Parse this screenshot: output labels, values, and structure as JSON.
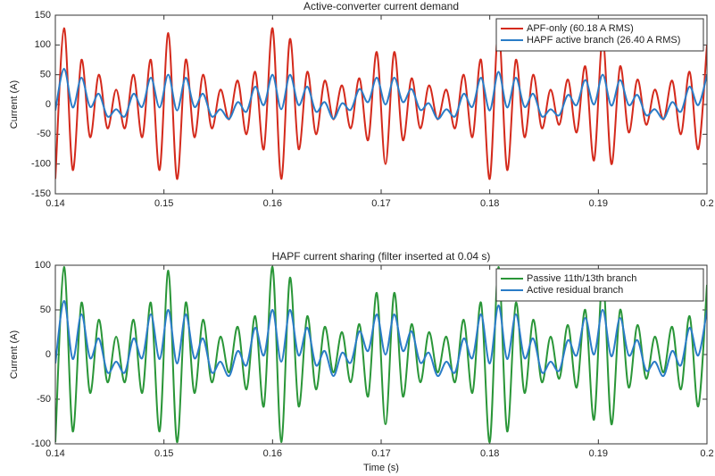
{
  "chart_data": [
    {
      "type": "line",
      "title": "Active-converter current demand",
      "ylabel": "Current (A)",
      "legend": "upper right",
      "grid": false,
      "xlim": [
        0.14,
        0.2
      ],
      "ylim": [
        -150,
        150
      ],
      "xticks": [
        0.14,
        0.15,
        0.16,
        0.17,
        0.18,
        0.19,
        0.2
      ],
      "yticks": [
        -150,
        -100,
        -50,
        0,
        50,
        100,
        150
      ],
      "x": [
        0.14,
        0.1408,
        0.1416,
        0.1424,
        0.1432,
        0.144,
        0.1448,
        0.1456,
        0.1464,
        0.1472,
        0.148,
        0.1488,
        0.1496,
        0.1504,
        0.1512,
        0.152,
        0.1528,
        0.1536,
        0.1544,
        0.1552,
        0.156,
        0.1568,
        0.1576,
        0.1584,
        0.1592,
        0.16,
        0.1608,
        0.1616,
        0.1624,
        0.1632,
        0.164,
        0.1648,
        0.1656,
        0.1664,
        0.1672,
        0.168,
        0.1688,
        0.1696,
        0.1704,
        0.1712,
        0.172,
        0.1728,
        0.1736,
        0.1744,
        0.1752,
        0.176,
        0.1768,
        0.1776,
        0.1784,
        0.1792,
        0.18,
        0.1808,
        0.1816,
        0.1824,
        0.1832,
        0.184,
        0.1848,
        0.1856,
        0.1864,
        0.1872,
        0.188,
        0.1888,
        0.1896,
        0.1904,
        0.1912,
        0.192,
        0.1928,
        0.1936,
        0.1944,
        0.1952,
        0.196,
        0.1968,
        0.1976,
        0.1984,
        0.1992,
        0.2
      ],
      "series": [
        {
          "name": "APF-only (60.18 A RMS)",
          "color": "#d42a1c",
          "values": [
            -125,
            128,
            -110,
            75,
            -55,
            50,
            -40,
            25,
            -40,
            50,
            -55,
            75,
            -110,
            120,
            -125,
            75,
            -55,
            50,
            -40,
            25,
            -25,
            40,
            -50,
            55,
            -75,
            128,
            -125,
            110,
            -75,
            55,
            -50,
            40,
            -25,
            32,
            -40,
            44,
            -60,
            88,
            -100,
            88,
            -60,
            44,
            -40,
            32,
            -25,
            25,
            -40,
            50,
            -55,
            75,
            -125,
            128,
            -110,
            75,
            -55,
            50,
            -40,
            25,
            -34,
            42,
            -47,
            64,
            -94,
            110,
            -100,
            64,
            -47,
            42,
            -34,
            25,
            -25,
            40,
            -50,
            55,
            -75,
            100
          ]
        },
        {
          "name": "HAPF active branch (26.40 A RMS)",
          "color": "#2a7cc7",
          "values": [
            -10,
            60,
            -5,
            45,
            -4,
            18,
            -20,
            -8,
            -20,
            18,
            -4,
            45,
            -5,
            50,
            -10,
            45,
            -4,
            18,
            -20,
            -8,
            -24,
            4,
            -12,
            30,
            -1,
            50,
            -8,
            50,
            -1,
            30,
            -12,
            4,
            -24,
            2,
            -9,
            26,
            4,
            45,
            0,
            45,
            4,
            26,
            -9,
            2,
            -24,
            -8,
            -20,
            18,
            -4,
            45,
            -10,
            55,
            -5,
            45,
            -4,
            18,
            -20,
            -8,
            -18,
            16,
            -1,
            41,
            0,
            50,
            -2,
            41,
            -1,
            16,
            -18,
            -8,
            -24,
            4,
            -12,
            30,
            -1,
            50
          ]
        }
      ]
    },
    {
      "type": "line",
      "title": "HAPF current sharing (filter inserted at 0.04 s)",
      "xlabel": "Time (s)",
      "ylabel": "Current (A)",
      "legend": "upper right",
      "grid": false,
      "xlim": [
        0.14,
        0.2
      ],
      "ylim": [
        -100,
        100
      ],
      "xticks": [
        0.14,
        0.15,
        0.16,
        0.17,
        0.18,
        0.19,
        0.2
      ],
      "yticks": [
        -100,
        -50,
        0,
        50,
        100
      ],
      "x": [
        0.14,
        0.1408,
        0.1416,
        0.1424,
        0.1432,
        0.144,
        0.1448,
        0.1456,
        0.1464,
        0.1472,
        0.148,
        0.1488,
        0.1496,
        0.1504,
        0.1512,
        0.152,
        0.1528,
        0.1536,
        0.1544,
        0.1552,
        0.156,
        0.1568,
        0.1576,
        0.1584,
        0.1592,
        0.16,
        0.1608,
        0.1616,
        0.1624,
        0.1632,
        0.164,
        0.1648,
        0.1656,
        0.1664,
        0.1672,
        0.168,
        0.1688,
        0.1696,
        0.1704,
        0.1712,
        0.172,
        0.1728,
        0.1736,
        0.1744,
        0.1752,
        0.176,
        0.1768,
        0.1776,
        0.1784,
        0.1792,
        0.18,
        0.1808,
        0.1816,
        0.1824,
        0.1832,
        0.184,
        0.1848,
        0.1856,
        0.1864,
        0.1872,
        0.188,
        0.1888,
        0.1896,
        0.1904,
        0.1912,
        0.192,
        0.1928,
        0.1936,
        0.1944,
        0.1952,
        0.196,
        0.1968,
        0.1976,
        0.1984,
        0.1992,
        0.2
      ],
      "series": [
        {
          "name": "Passive 11th/13th branch",
          "color": "#2a9638",
          "values": [
            -98,
            98,
            -86,
            58,
            -43,
            39,
            -31,
            20,
            -31,
            39,
            -43,
            58,
            -86,
            94,
            -98,
            58,
            -43,
            39,
            -31,
            20,
            -20,
            31,
            -39,
            43,
            -58,
            98,
            -98,
            86,
            -58,
            43,
            -39,
            31,
            -20,
            25,
            -31,
            34,
            -47,
            69,
            -78,
            69,
            -47,
            34,
            -31,
            25,
            -20,
            20,
            -31,
            39,
            -43,
            58,
            -98,
            98,
            -86,
            58,
            -43,
            39,
            -31,
            20,
            -27,
            33,
            -37,
            50,
            -73,
            86,
            -78,
            50,
            -37,
            33,
            -27,
            20,
            -20,
            31,
            -39,
            43,
            -58,
            78
          ]
        },
        {
          "name": "Active residual branch",
          "color": "#2a7cc7",
          "values": [
            -10,
            60,
            -5,
            45,
            -4,
            18,
            -20,
            -8,
            -20,
            18,
            -4,
            45,
            -5,
            50,
            -10,
            45,
            -4,
            18,
            -20,
            -8,
            -24,
            4,
            -12,
            30,
            -1,
            50,
            -8,
            50,
            -1,
            30,
            -12,
            4,
            -24,
            2,
            -9,
            26,
            4,
            45,
            0,
            45,
            4,
            26,
            -9,
            2,
            -24,
            -8,
            -20,
            18,
            -4,
            45,
            -10,
            55,
            -5,
            45,
            -4,
            18,
            -20,
            -8,
            -18,
            16,
            -1,
            41,
            0,
            50,
            -2,
            41,
            -1,
            16,
            -18,
            -8,
            -24,
            4,
            -12,
            30,
            -1,
            50
          ]
        }
      ]
    }
  ]
}
